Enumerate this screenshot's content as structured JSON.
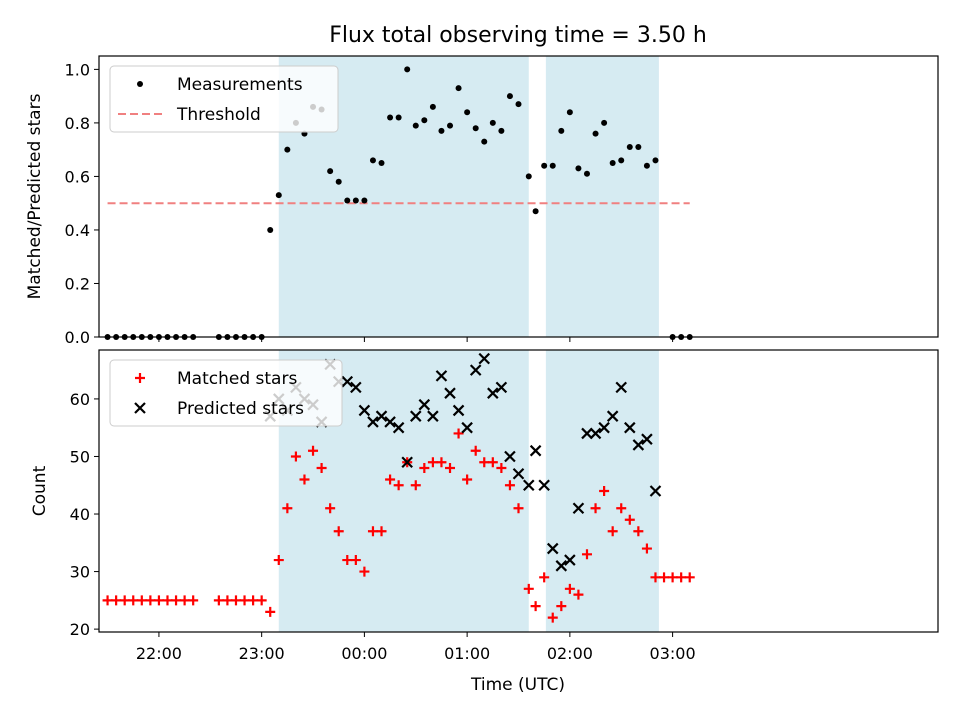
{
  "chart_data": [
    {
      "type": "scatter",
      "title": "Flux total observing time = 3.50 h",
      "xlabel": "",
      "ylabel": "Matched/Predicted stars",
      "ylim": [
        0,
        1.05
      ],
      "yticks": [
        "0.0",
        "0.2",
        "0.4",
        "0.6",
        "0.8",
        "1.0"
      ],
      "xlim_minutes": [
        -155,
        335
      ],
      "xtick_labels": [
        "22:00",
        "23:00",
        "00:00",
        "01:00",
        "02:00",
        "03:00"
      ],
      "legend": {
        "placement": "top-left",
        "entries": [
          "Measurements",
          "Threshold"
        ]
      },
      "shaded_intervals": [
        [
          "23:10",
          "01:36"
        ],
        [
          "01:46",
          "02:52"
        ]
      ],
      "threshold": {
        "value": 0.5,
        "x_range": [
          "21:30",
          "03:10"
        ],
        "color": "#f08080",
        "style": "dashed"
      },
      "series": [
        {
          "name": "Measurements",
          "color": "#000000",
          "marker": "dot",
          "x": [
            "21:30",
            "21:35",
            "21:40",
            "21:45",
            "21:50",
            "21:55",
            "22:00",
            "22:05",
            "22:10",
            "22:15",
            "22:20",
            "22:35",
            "22:40",
            "22:45",
            "22:50",
            "22:55",
            "23:00",
            "23:05",
            "23:10",
            "23:15",
            "23:20",
            "23:25",
            "23:30",
            "23:35",
            "23:40",
            "23:45",
            "23:50",
            "23:55",
            "00:00",
            "00:05",
            "00:10",
            "00:15",
            "00:20",
            "00:25",
            "00:30",
            "00:35",
            "00:40",
            "00:45",
            "00:50",
            "00:55",
            "01:00",
            "01:05",
            "01:10",
            "01:15",
            "01:20",
            "01:25",
            "01:30",
            "01:36",
            "01:40",
            "01:45",
            "01:50",
            "01:55",
            "02:00",
            "02:05",
            "02:10",
            "02:15",
            "02:20",
            "02:25",
            "02:30",
            "02:35",
            "02:40",
            "02:45",
            "02:50",
            "03:00",
            "03:05",
            "03:10"
          ],
          "y": [
            0,
            0,
            0,
            0,
            0,
            0,
            0,
            0,
            0,
            0,
            0,
            0,
            0,
            0,
            0,
            0,
            0,
            0.4,
            0.53,
            0.7,
            0.8,
            0.76,
            0.86,
            0.85,
            0.62,
            0.58,
            0.51,
            0.51,
            0.51,
            0.66,
            0.65,
            0.82,
            0.82,
            1.0,
            0.79,
            0.81,
            0.86,
            0.77,
            0.79,
            0.93,
            0.84,
            0.78,
            0.73,
            0.8,
            0.77,
            0.9,
            0.87,
            0.6,
            0.47,
            0.64,
            0.64,
            0.77,
            0.84,
            0.63,
            0.61,
            0.76,
            0.8,
            0.65,
            0.66,
            0.71,
            0.71,
            0.64,
            0.66,
            0,
            0,
            0
          ]
        }
      ]
    },
    {
      "type": "scatter",
      "title": "",
      "xlabel": "Time (UTC)",
      "ylabel": "Count",
      "ylim": [
        19.5,
        68.5
      ],
      "yticks": [
        "20",
        "30",
        "40",
        "50",
        "60"
      ],
      "xlim_minutes": [
        -155,
        335
      ],
      "xtick_labels": [
        "22:00",
        "23:00",
        "00:00",
        "01:00",
        "02:00",
        "03:00"
      ],
      "legend": {
        "placement": "top-left",
        "entries": [
          "Matched stars",
          "Predicted stars"
        ]
      },
      "shaded_intervals": [
        [
          "23:10",
          "01:36"
        ],
        [
          "01:46",
          "02:52"
        ]
      ],
      "series": [
        {
          "name": "Matched stars",
          "color": "#ff0000",
          "marker": "plus",
          "x": [
            "21:30",
            "21:35",
            "21:40",
            "21:45",
            "21:50",
            "21:55",
            "22:00",
            "22:05",
            "22:10",
            "22:15",
            "22:20",
            "22:35",
            "22:40",
            "22:45",
            "22:50",
            "22:55",
            "23:00",
            "23:05",
            "23:10",
            "23:15",
            "23:20",
            "23:25",
            "23:30",
            "23:35",
            "23:40",
            "23:45",
            "23:50",
            "23:55",
            "00:00",
            "00:05",
            "00:10",
            "00:15",
            "00:20",
            "00:25",
            "00:30",
            "00:35",
            "00:40",
            "00:45",
            "00:50",
            "00:55",
            "01:00",
            "01:05",
            "01:10",
            "01:15",
            "01:20",
            "01:25",
            "01:30",
            "01:36",
            "01:40",
            "01:45",
            "01:50",
            "01:55",
            "02:00",
            "02:05",
            "02:10",
            "02:15",
            "02:20",
            "02:25",
            "02:30",
            "02:35",
            "02:40",
            "02:45",
            "02:50",
            "02:55",
            "03:00",
            "03:05",
            "03:10"
          ],
          "y": [
            25,
            25,
            25,
            25,
            25,
            25,
            25,
            25,
            25,
            25,
            25,
            25,
            25,
            25,
            25,
            25,
            25,
            23,
            32,
            41,
            50,
            46,
            51,
            48,
            41,
            37,
            32,
            32,
            30,
            37,
            37,
            46,
            45,
            49,
            45,
            48,
            49,
            49,
            48,
            54,
            46,
            51,
            49,
            49,
            48,
            45,
            41,
            27,
            24,
            29,
            22,
            24,
            27,
            26,
            33,
            41,
            44,
            37,
            41,
            39,
            37,
            34,
            29,
            29,
            29,
            29,
            29
          ]
        },
        {
          "name": "Predicted stars",
          "color": "#000000",
          "marker": "x",
          "x": [
            "23:05",
            "23:10",
            "23:15",
            "23:20",
            "23:25",
            "23:30",
            "23:35",
            "23:40",
            "23:45",
            "23:50",
            "23:55",
            "00:00",
            "00:05",
            "00:10",
            "00:15",
            "00:20",
            "00:25",
            "00:30",
            "00:35",
            "00:40",
            "00:45",
            "00:50",
            "00:55",
            "01:00",
            "01:05",
            "01:10",
            "01:15",
            "01:20",
            "01:25",
            "01:30",
            "01:36",
            "01:40",
            "01:45",
            "01:50",
            "01:55",
            "02:00",
            "02:05",
            "02:10",
            "02:15",
            "02:20",
            "02:25",
            "02:30",
            "02:35",
            "02:40",
            "02:45",
            "02:50"
          ],
          "y": [
            57,
            60,
            58,
            62,
            60,
            59,
            56,
            66,
            63,
            63,
            62,
            58,
            56,
            57,
            56,
            55,
            49,
            57,
            59,
            57,
            64,
            61,
            58,
            55,
            65,
            67,
            61,
            62,
            50,
            47,
            45,
            51,
            45,
            34,
            31,
            32,
            41,
            54,
            54,
            55,
            57,
            62,
            55,
            52,
            53,
            44
          ]
        }
      ]
    }
  ]
}
